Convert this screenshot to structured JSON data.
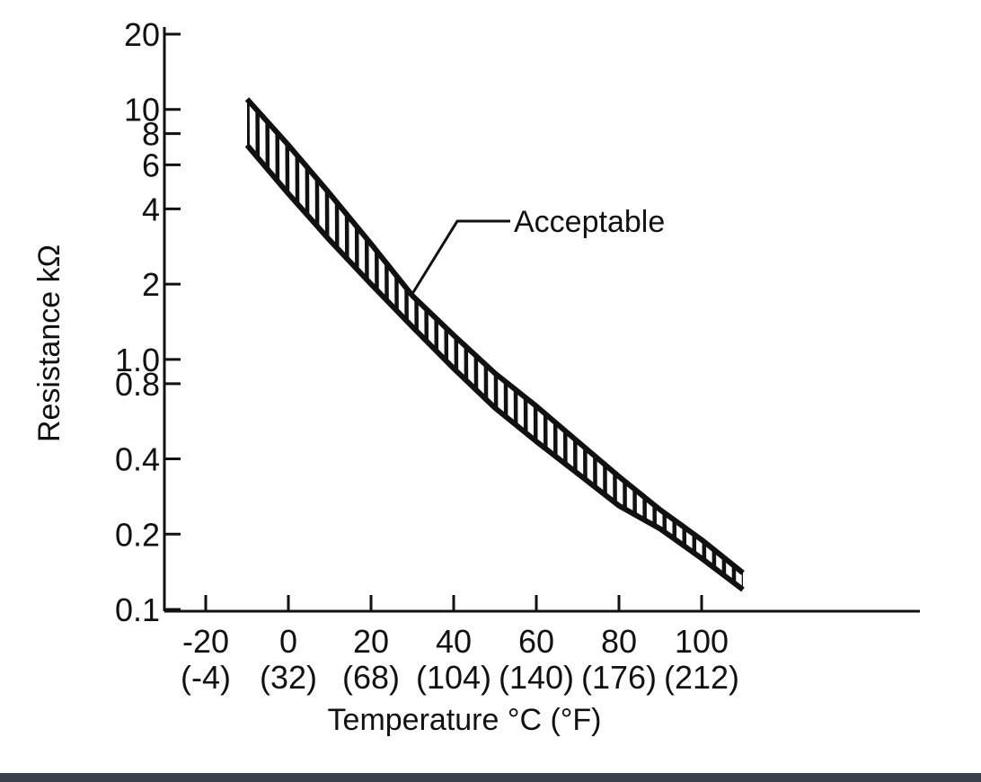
{
  "chart_data": {
    "type": "area",
    "title": "",
    "xlabel": "Temperature °C (°F)",
    "ylabel": "Resistance kΩ",
    "y_scale": "log",
    "ylim": [
      0.1,
      20
    ],
    "xlim": [
      -30,
      170
    ],
    "grid": false,
    "x_ticks": [
      {
        "value": -20,
        "label": "-20",
        "sublabel": "(-4)"
      },
      {
        "value": 0,
        "label": "0",
        "sublabel": "(32)"
      },
      {
        "value": 20,
        "label": "20",
        "sublabel": "(68)"
      },
      {
        "value": 40,
        "label": "40",
        "sublabel": "(104)"
      },
      {
        "value": 60,
        "label": "60",
        "sublabel": "(140)"
      },
      {
        "value": 80,
        "label": "80",
        "sublabel": "(176)"
      },
      {
        "value": 100,
        "label": "100",
        "sublabel": "(212)"
      }
    ],
    "y_ticks": [
      {
        "value": 20,
        "label": "20"
      },
      {
        "value": 10,
        "label": "10"
      },
      {
        "value": 8,
        "label": "8"
      },
      {
        "value": 6,
        "label": "6"
      },
      {
        "value": 4,
        "label": "4"
      },
      {
        "value": 2,
        "label": "2"
      },
      {
        "value": 1.0,
        "label": "1.0"
      },
      {
        "value": 0.8,
        "label": "0.8"
      },
      {
        "value": 0.4,
        "label": "0.4"
      },
      {
        "value": 0.2,
        "label": "0.2"
      },
      {
        "value": 0.1,
        "label": "0.1"
      }
    ],
    "series": [
      {
        "name": "Acceptable",
        "x": [
          -10,
          0,
          10,
          20,
          30,
          40,
          50,
          60,
          70,
          80,
          90,
          100,
          110
        ],
        "y_upper": [
          11,
          7.2,
          4.6,
          2.9,
          1.8,
          1.25,
          0.88,
          0.65,
          0.47,
          0.34,
          0.25,
          0.19,
          0.14
        ],
        "y_lower": [
          7.2,
          4.6,
          3.0,
          2.0,
          1.35,
          0.92,
          0.64,
          0.47,
          0.35,
          0.26,
          0.21,
          0.16,
          0.12
        ]
      }
    ],
    "annotations": [
      {
        "text": "Acceptable",
        "points_to_x": 30
      }
    ]
  }
}
